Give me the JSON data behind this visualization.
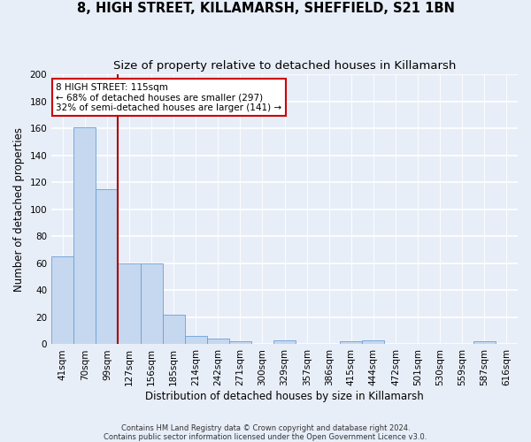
{
  "title": "8, HIGH STREET, KILLAMARSH, SHEFFIELD, S21 1BN",
  "subtitle": "Size of property relative to detached houses in Killamarsh",
  "xlabel": "Distribution of detached houses by size in Killamarsh",
  "ylabel": "Number of detached properties",
  "bar_labels": [
    "41sqm",
    "70sqm",
    "99sqm",
    "127sqm",
    "156sqm",
    "185sqm",
    "214sqm",
    "242sqm",
    "271sqm",
    "300sqm",
    "329sqm",
    "357sqm",
    "386sqm",
    "415sqm",
    "444sqm",
    "472sqm",
    "501sqm",
    "530sqm",
    "559sqm",
    "587sqm",
    "616sqm"
  ],
  "bar_values": [
    65,
    161,
    115,
    60,
    60,
    22,
    6,
    4,
    2,
    0,
    3,
    0,
    0,
    2,
    3,
    0,
    0,
    0,
    0,
    2,
    0
  ],
  "bar_color": "#c5d8ef",
  "bar_edge_color": "#6a9fd8",
  "ylim": [
    0,
    200
  ],
  "yticks": [
    0,
    20,
    40,
    60,
    80,
    100,
    120,
    140,
    160,
    180,
    200
  ],
  "vline_x_index": 2,
  "vline_color": "#aa0000",
  "annotation_text": "8 HIGH STREET: 115sqm\n← 68% of detached houses are smaller (297)\n32% of semi-detached houses are larger (141) →",
  "annotation_box_facecolor": "#ffffff",
  "annotation_box_edgecolor": "#cc0000",
  "footer_line1": "Contains HM Land Registry data © Crown copyright and database right 2024.",
  "footer_line2": "Contains public sector information licensed under the Open Government Licence v3.0.",
  "background_color": "#e8eef8",
  "grid_color": "#ffffff",
  "title_fontsize": 10.5,
  "subtitle_fontsize": 9.5,
  "axis_label_fontsize": 8.5,
  "tick_fontsize": 7.5,
  "annot_fontsize": 7.5,
  "footer_fontsize": 6.0
}
